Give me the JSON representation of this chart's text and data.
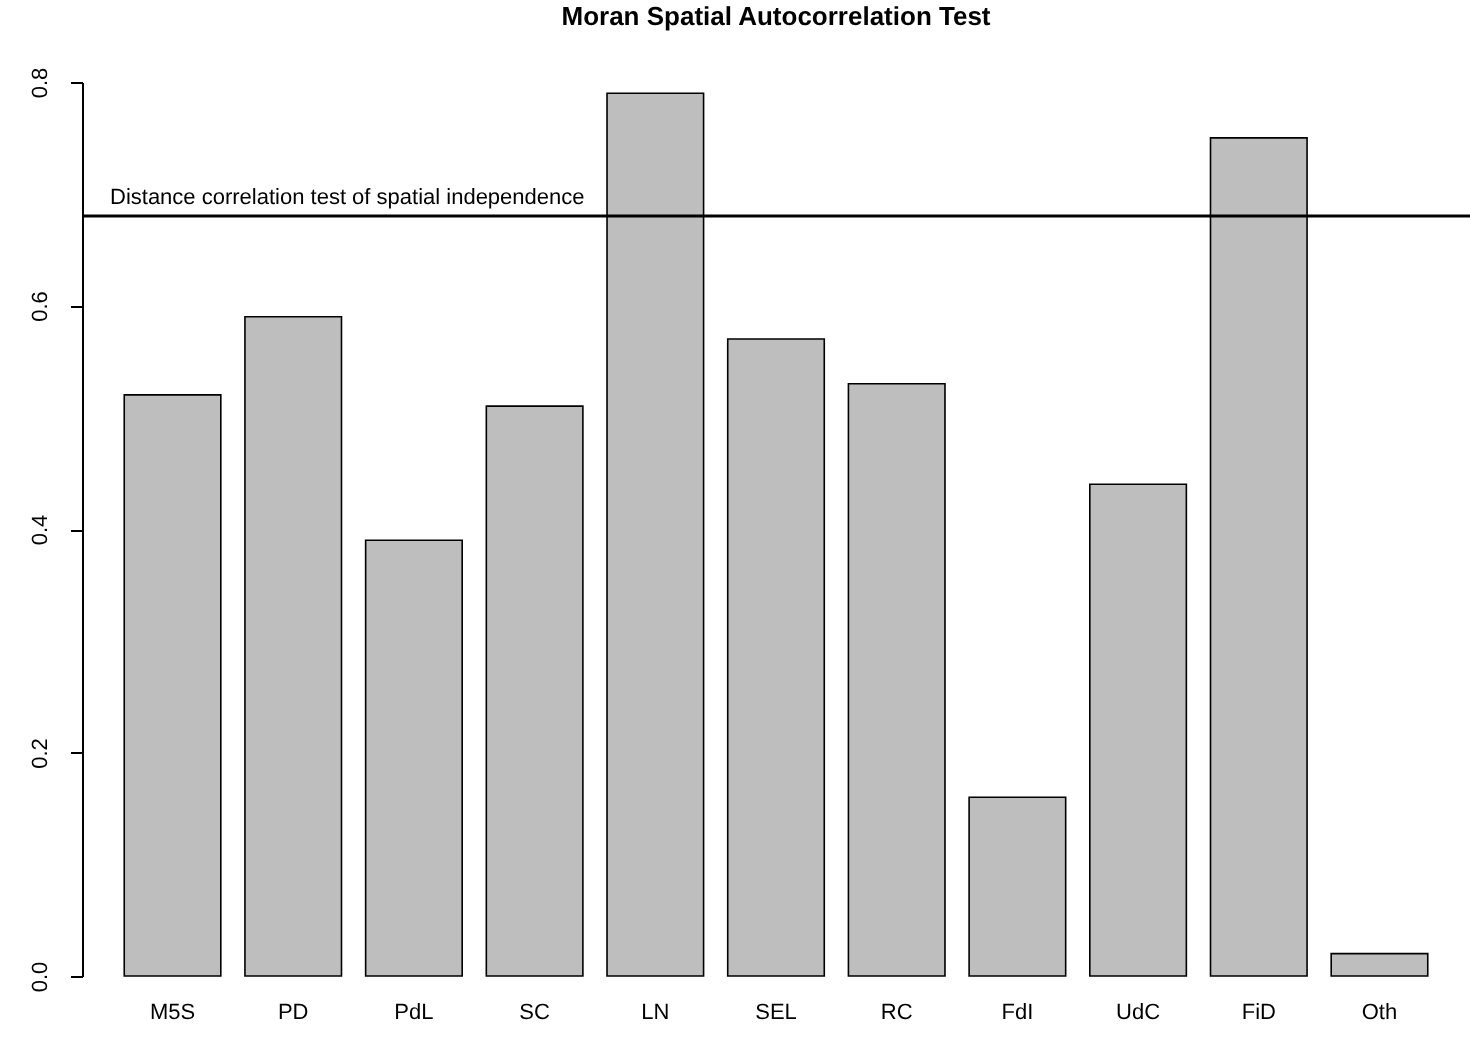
{
  "chart_data": {
    "type": "bar",
    "title": "Moran Spatial Autocorrelation Test",
    "categories": [
      "M5S",
      "PD",
      "PdL",
      "SC",
      "LN",
      "SEL",
      "RC",
      "FdI",
      "UdC",
      "FiD",
      "Oth"
    ],
    "values": [
      0.52,
      0.59,
      0.39,
      0.51,
      0.79,
      0.57,
      0.53,
      0.16,
      0.44,
      0.75,
      0.02
    ],
    "color": "#bebebe",
    "ylim": [
      0,
      0.8
    ],
    "yticks": [
      {
        "value": 0,
        "label": "0.0"
      },
      {
        "value": 0.2,
        "label": "0.2"
      },
      {
        "value": 0.4,
        "label": "0.4"
      },
      {
        "value": 0.6,
        "label": "0.6"
      },
      {
        "value": 0.8,
        "label": "0.8"
      }
    ],
    "ref_lines": [
      {
        "axis": "y",
        "value": 0.68,
        "label": "Distance correlation test of spatial independence",
        "color": "#000000"
      }
    ]
  }
}
